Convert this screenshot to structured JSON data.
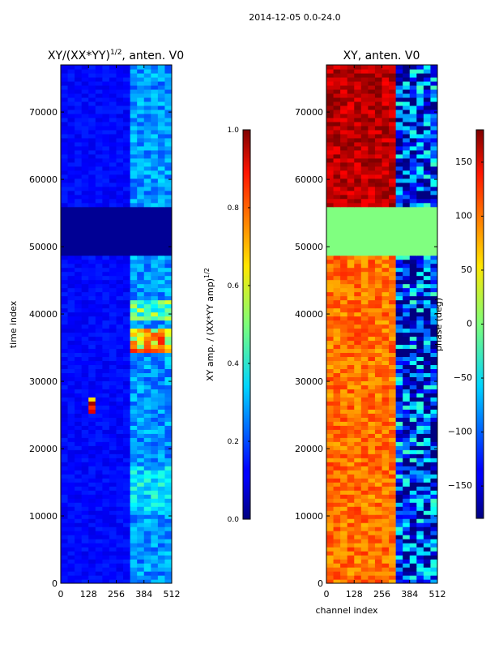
{
  "figure": {
    "suptitle": "2014-12-05 0.0-24.0"
  },
  "chart_data": [
    {
      "type": "heatmap",
      "title": "XY/(XX*YY)^1/2, anten. V0",
      "title_main": "XY/(XX*YY)",
      "title_sup": "1/2",
      "title_tail": ", anten. V0",
      "xlabel": "",
      "ylabel": "time index",
      "xlim": [
        0,
        512
      ],
      "ylim": [
        0,
        77000
      ],
      "xticks": [
        0,
        128,
        256,
        384,
        512
      ],
      "xtick_labels": [
        "0",
        "128",
        "256",
        "384",
        "512"
      ],
      "yticks": [
        0,
        10000,
        20000,
        30000,
        40000,
        50000,
        60000,
        70000
      ],
      "ytick_labels": [
        "0",
        "10000",
        "20000",
        "30000",
        "40000",
        "50000",
        "60000",
        "70000"
      ],
      "colorbar": {
        "label": "XY amp. / (XX*YY amp)^1/2",
        "label_main": "XY amp. / (XX*YY amp)",
        "label_sup": "1/2",
        "range": [
          0.0,
          1.0
        ],
        "ticks": [
          0.0,
          0.2,
          0.4,
          0.6,
          0.8,
          1.0
        ],
        "tick_labels": [
          "0.0",
          "0.2",
          "0.4",
          "0.6",
          "0.8",
          "1.0"
        ]
      },
      "features": [
        {
          "x": [
            325,
            512
          ],
          "y": [
            0,
            77000
          ],
          "value": 0.35,
          "note": "higher amplitude columns"
        },
        {
          "x": [
            325,
            512
          ],
          "y": [
            34000,
            38000
          ],
          "value": 0.85,
          "note": "peak amplitude band"
        },
        {
          "x": [
            325,
            512
          ],
          "y": [
            39000,
            42000
          ],
          "value": 0.6
        },
        {
          "x": [
            325,
            512
          ],
          "y": [
            10500,
            17500
          ],
          "value": 0.45
        },
        {
          "x": [
            120,
            170
          ],
          "y": [
            25500,
            27800
          ],
          "value": 1.0,
          "note": "bright feature"
        },
        {
          "x": [
            0,
            512
          ],
          "y": [
            49000,
            56000
          ],
          "value": 0.0,
          "note": "flagged gap"
        }
      ]
    },
    {
      "type": "heatmap",
      "title": "XY, anten. V0",
      "xlabel": "channel index",
      "ylabel": "",
      "xlim": [
        0,
        512
      ],
      "ylim": [
        0,
        77000
      ],
      "xticks": [
        0,
        128,
        256,
        384,
        512
      ],
      "xtick_labels": [
        "0",
        "128",
        "256",
        "384",
        "512"
      ],
      "yticks": [
        0,
        10000,
        20000,
        30000,
        40000,
        50000,
        60000,
        70000
      ],
      "ytick_labels": [
        "0",
        "10000",
        "20000",
        "30000",
        "40000",
        "50000",
        "60000",
        "70000"
      ],
      "colorbar": {
        "label": "phase (deg)",
        "range": [
          -180,
          180
        ],
        "ticks": [
          150,
          100,
          50,
          0,
          -50,
          -100,
          -150
        ],
        "tick_labels": [
          "150",
          "100",
          "50",
          "0",
          "−50",
          "−100",
          "−150"
        ]
      },
      "features": [
        {
          "x": [
            0,
            330
          ],
          "y": [
            0,
            49000
          ],
          "value": 95,
          "note": "orange/red phase"
        },
        {
          "x": [
            330,
            512
          ],
          "y": [
            0,
            77000
          ],
          "value": -120,
          "note": "mixed blue phase"
        },
        {
          "x": [
            0,
            330
          ],
          "y": [
            56000,
            77000
          ],
          "value": 160,
          "note": "dark red phase"
        },
        {
          "x": [
            0,
            512
          ],
          "y": [
            49000,
            56000
          ],
          "value": 0,
          "note": "flagged gap (green)"
        }
      ]
    }
  ]
}
